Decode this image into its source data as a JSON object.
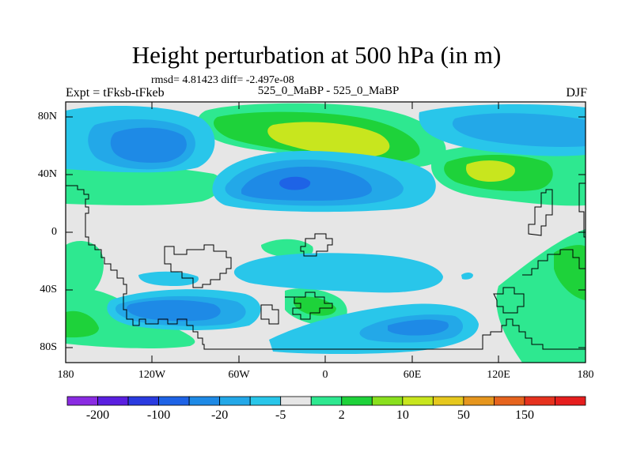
{
  "title": "Height perturbation at 500 hPa (in m)",
  "stats": "rmsd= 4.81423 diff= -2.497e-08",
  "left_label": "Expt = tFksb-tFkeb",
  "center_label": "525_0_MaBP - 525_0_MaBP",
  "right_label": "DJF",
  "map": {
    "lon_range": [
      -180,
      180
    ],
    "lat_range": [
      -90,
      90
    ],
    "lat_ticks": [
      {
        "value": 80,
        "label": "80N"
      },
      {
        "value": 40,
        "label": "40N"
      },
      {
        "value": 0,
        "label": "0"
      },
      {
        "value": -40,
        "label": "40S"
      },
      {
        "value": -80,
        "label": "80S"
      }
    ],
    "lon_ticks": [
      {
        "value": -180,
        "label": "180"
      },
      {
        "value": -120,
        "label": "120W"
      },
      {
        "value": -60,
        "label": "60W"
      },
      {
        "value": 0,
        "label": "0"
      },
      {
        "value": 60,
        "label": "60E"
      },
      {
        "value": 120,
        "label": "120E"
      },
      {
        "value": 180,
        "label": "180"
      }
    ]
  },
  "colorbar": {
    "labels": [
      "-200",
      "-100",
      "-20",
      "-5",
      "2",
      "10",
      "50",
      "150"
    ],
    "colors": [
      "#8a2be2",
      "#5a1fe0",
      "#2a3be0",
      "#1e63e6",
      "#1e8ae6",
      "#23a8e8",
      "#29c6ea",
      "#e6e6e6",
      "#2ee890",
      "#1ed23a",
      "#8ae01e",
      "#c8e61e",
      "#e6c81e",
      "#e6961e",
      "#e6641e",
      "#e6321e",
      "#e61e1e"
    ]
  },
  "colors": {
    "blue_dark": "#1e63e6",
    "blue_mid": "#1e8ae6",
    "blue_light": "#23a8e8",
    "cyan": "#29c6ea",
    "gray": "#e6e6e6",
    "green_light": "#2ee890",
    "green": "#1ed23a",
    "yellow_green": "#c8e61e"
  }
}
